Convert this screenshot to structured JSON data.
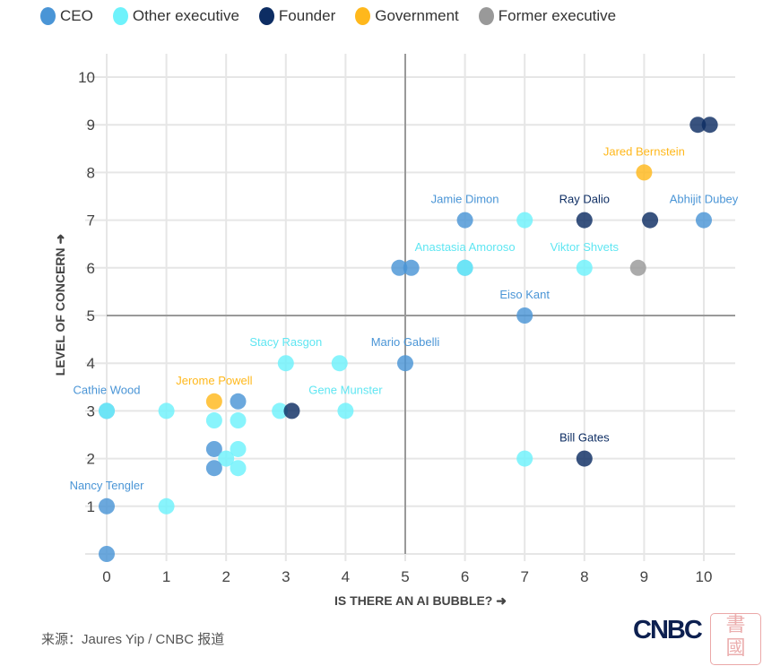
{
  "chart_data": {
    "type": "scatter",
    "xlabel": "IS THERE AN AI BUBBLE? ➜",
    "ylabel": "LEVEL OF CONCERN ➜",
    "xlim": [
      0,
      10
    ],
    "ylim": [
      0,
      10
    ],
    "xticks": [
      "0",
      "1",
      "2",
      "3",
      "4",
      "5",
      "6",
      "7",
      "8",
      "9",
      "10"
    ],
    "yticks": [
      "1",
      "2",
      "3",
      "4",
      "5",
      "6",
      "7",
      "8",
      "9",
      "10"
    ],
    "grid": true,
    "reference_lines": {
      "x": 5,
      "y": 5
    },
    "legend_position": "top-left",
    "categories": [
      {
        "key": "ceo",
        "name": "CEO",
        "color": "#4a95d6"
      },
      {
        "key": "other",
        "name": "Other executive",
        "color": "#6ef2fb"
      },
      {
        "key": "founder",
        "name": "Founder",
        "color": "#0d2d63"
      },
      {
        "key": "gov",
        "name": "Government",
        "color": "#ffb81c"
      },
      {
        "key": "former",
        "name": "Former executive",
        "color": "#999999"
      }
    ],
    "points": [
      {
        "x": 0,
        "y": 0,
        "cat": "ceo"
      },
      {
        "x": 0,
        "y": 1,
        "cat": "ceo",
        "label": "Nancy Tengler"
      },
      {
        "x": 1,
        "y": 1,
        "cat": "other"
      },
      {
        "x": 0,
        "y": 3,
        "cat": "ceo",
        "label": "Cathie Wood"
      },
      {
        "x": 0,
        "y": 3,
        "cat": "other"
      },
      {
        "x": 1,
        "y": 3,
        "cat": "other"
      },
      {
        "x": 1.8,
        "y": 3.2,
        "cat": "gov",
        "label": "Jerome Powell"
      },
      {
        "x": 2.2,
        "y": 3.2,
        "cat": "ceo"
      },
      {
        "x": 1.8,
        "y": 2.8,
        "cat": "other"
      },
      {
        "x": 2.2,
        "y": 2.8,
        "cat": "other"
      },
      {
        "x": 1.8,
        "y": 2.2,
        "cat": "ceo"
      },
      {
        "x": 2.2,
        "y": 2.2,
        "cat": "other"
      },
      {
        "x": 2,
        "y": 2,
        "cat": "other"
      },
      {
        "x": 1.8,
        "y": 1.8,
        "cat": "ceo"
      },
      {
        "x": 2.2,
        "y": 1.8,
        "cat": "other"
      },
      {
        "x": 2.9,
        "y": 3,
        "cat": "other"
      },
      {
        "x": 3.1,
        "y": 3,
        "cat": "founder"
      },
      {
        "x": 4,
        "y": 3,
        "cat": "other",
        "label": "Gene Munster"
      },
      {
        "x": 3,
        "y": 4,
        "cat": "other",
        "label": "Stacy Rasgon"
      },
      {
        "x": 3.9,
        "y": 4,
        "cat": "other"
      },
      {
        "x": 5,
        "y": 4,
        "cat": "ceo",
        "label": "Mario Gabelli"
      },
      {
        "x": 7,
        "y": 2,
        "cat": "other"
      },
      {
        "x": 8,
        "y": 2,
        "cat": "founder",
        "label": "Bill Gates"
      },
      {
        "x": 7,
        "y": 5,
        "cat": "ceo",
        "label": "Eiso Kant"
      },
      {
        "x": 4.9,
        "y": 6,
        "cat": "ceo"
      },
      {
        "x": 5.1,
        "y": 6,
        "cat": "ceo"
      },
      {
        "x": 6,
        "y": 6,
        "cat": "ceo"
      },
      {
        "x": 6,
        "y": 6,
        "cat": "other",
        "label": "Anastasia Amoroso"
      },
      {
        "x": 8,
        "y": 6,
        "cat": "other",
        "label": "Viktor Shvets"
      },
      {
        "x": 8.9,
        "y": 6,
        "cat": "former"
      },
      {
        "x": 6,
        "y": 7,
        "cat": "ceo",
        "label": "Jamie Dimon"
      },
      {
        "x": 7,
        "y": 7,
        "cat": "other"
      },
      {
        "x": 8,
        "y": 7,
        "cat": "founder",
        "label": "Ray Dalio"
      },
      {
        "x": 9.1,
        "y": 7,
        "cat": "founder"
      },
      {
        "x": 10,
        "y": 7,
        "cat": "ceo",
        "label": "Abhijit Dubey"
      },
      {
        "x": 9,
        "y": 8,
        "cat": "gov",
        "label": "Jared Bernstein"
      },
      {
        "x": 9.9,
        "y": 9,
        "cat": "founder"
      },
      {
        "x": 10.1,
        "y": 9,
        "cat": "founder"
      }
    ]
  },
  "footer": {
    "source": "来源：Jaures Yip / CNBC 报道",
    "logo": "CNBC",
    "stamp_text": "書國"
  }
}
